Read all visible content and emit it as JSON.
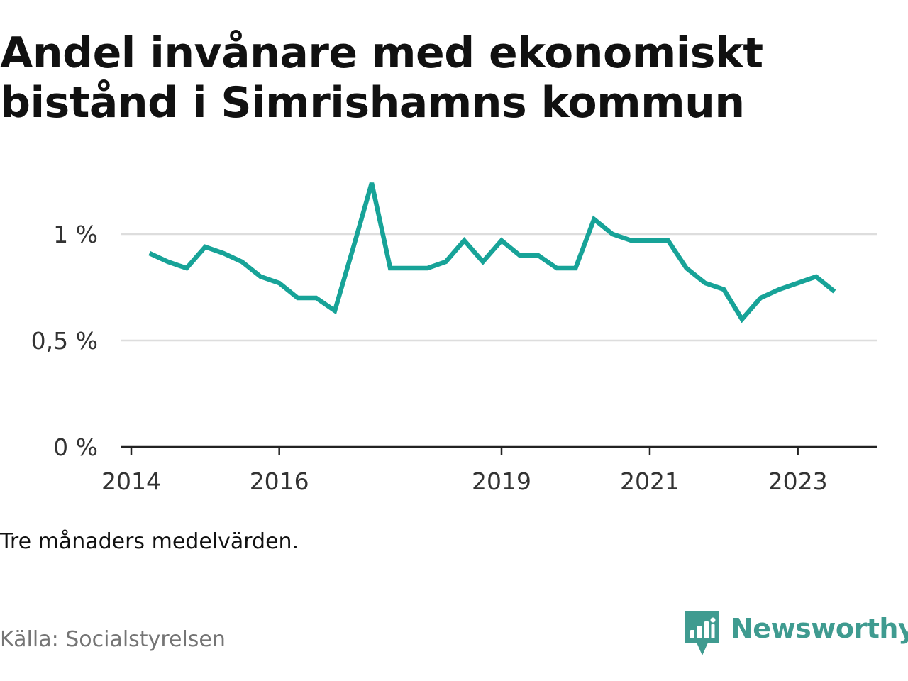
{
  "title": "Andel invånare med ekonomiskt bistånd i Simrishamns kommun",
  "note": "Tre månaders medelvärden.",
  "source": "Källa: Socialstyrelsen",
  "brand": "Newsworthy",
  "colors": {
    "line": "#17a398",
    "gridline": "#dddddd",
    "axis": "#222222",
    "brand": "#3f9b90"
  },
  "icons": {
    "brand_logo": "bar-chart-speech-bubble-icon"
  },
  "chart_data": {
    "type": "line",
    "title": "Andel invånare med ekonomiskt bistånd i Simrishamns kommun",
    "xlabel": "",
    "ylabel": "",
    "xlim": [
      "2014-01-01",
      "2024-01-01"
    ],
    "ylim": [
      0,
      1.2
    ],
    "y_ticks": [
      {
        "value": 0,
        "label": "0 %"
      },
      {
        "value": 0.5,
        "label": "0,5 %"
      },
      {
        "value": 1,
        "label": "1 %"
      }
    ],
    "x_ticks": [
      {
        "date": "2014-01-01",
        "label": "2014"
      },
      {
        "date": "2016-01-01",
        "label": "2016"
      },
      {
        "date": "2019-01-01",
        "label": "2019"
      },
      {
        "date": "2021-01-01",
        "label": "2021"
      },
      {
        "date": "2023-01-01",
        "label": "2023"
      }
    ],
    "grid": true,
    "series": [
      {
        "x": [
          "2014-04-01",
          "2014-07-01",
          "2014-10-01",
          "2015-01-01",
          "2015-04-01",
          "2015-07-01",
          "2015-10-01",
          "2016-01-01",
          "2016-04-01",
          "2016-07-01",
          "2016-10-01",
          "2017-01-01",
          "2017-04-01",
          "2017-07-01",
          "2017-10-01",
          "2018-01-01",
          "2018-04-01",
          "2018-07-01",
          "2018-10-01",
          "2019-01-01",
          "2019-04-01",
          "2019-07-01",
          "2019-10-01",
          "2020-01-01",
          "2020-04-01",
          "2020-07-01",
          "2020-10-01",
          "2021-01-01",
          "2021-04-01",
          "2021-07-01",
          "2021-10-01",
          "2022-01-01",
          "2022-04-01",
          "2022-07-01",
          "2022-10-01",
          "2023-01-01",
          "2023-04-01",
          "2023-07-01"
        ],
        "values": [
          0.91,
          0.87,
          0.84,
          0.94,
          0.91,
          0.87,
          0.8,
          0.77,
          0.7,
          0.7,
          0.64,
          0.94,
          1.24,
          0.84,
          0.84,
          0.84,
          0.87,
          0.97,
          0.87,
          0.97,
          0.9,
          0.9,
          0.84,
          0.84,
          1.07,
          1.0,
          0.97,
          0.97,
          0.97,
          0.84,
          0.77,
          0.74,
          0.6,
          0.7,
          0.74,
          0.77,
          0.8,
          0.73
        ]
      }
    ]
  }
}
